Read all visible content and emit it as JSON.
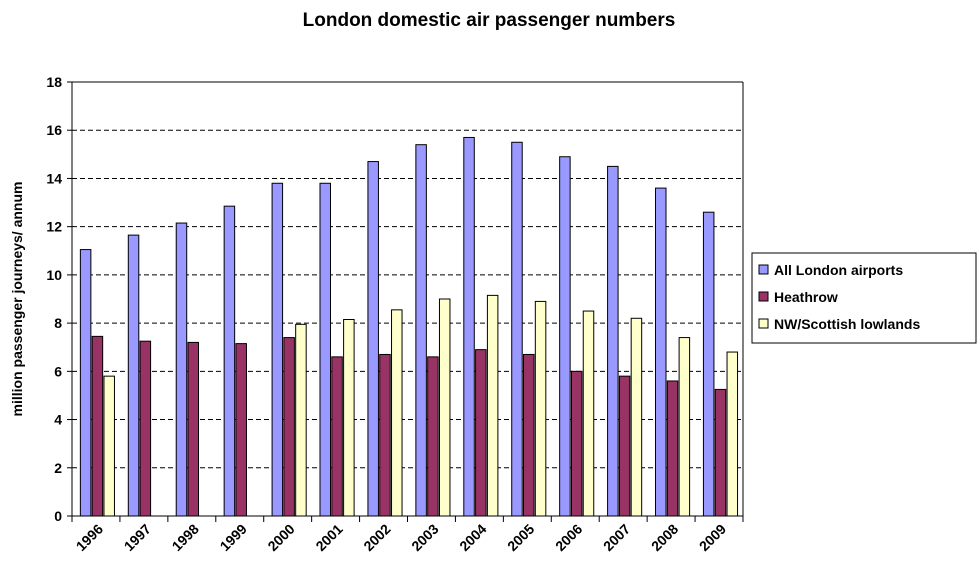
{
  "chart_data": {
    "type": "bar",
    "title": "London domestic air passenger numbers",
    "xlabel": "",
    "ylabel": "million passenger journeys/ annum",
    "ylim": [
      0,
      18
    ],
    "yticks": [
      0,
      2,
      4,
      6,
      8,
      10,
      12,
      14,
      16,
      18
    ],
    "grid": "horizontal dashed",
    "legend_position": "right",
    "categories": [
      "1996",
      "1997",
      "1998",
      "1999",
      "2000",
      "2001",
      "2002",
      "2003",
      "2004",
      "2005",
      "2006",
      "2007",
      "2008",
      "2009"
    ],
    "series": [
      {
        "name": "All London airports",
        "color": "#9999ff",
        "values": [
          11.05,
          11.65,
          12.15,
          12.85,
          13.8,
          13.8,
          14.7,
          15.4,
          15.7,
          15.5,
          14.9,
          14.5,
          13.6,
          12.6
        ]
      },
      {
        "name": "Heathrow",
        "color": "#993366",
        "values": [
          7.45,
          7.25,
          7.2,
          7.15,
          7.4,
          6.6,
          6.7,
          6.6,
          6.9,
          6.7,
          6.0,
          5.8,
          5.6,
          5.25
        ]
      },
      {
        "name": "NW/Scottish lowlands",
        "color": "#ffffcc",
        "values": [
          5.8,
          null,
          null,
          null,
          7.95,
          8.15,
          8.55,
          9.0,
          9.15,
          8.9,
          8.5,
          8.2,
          7.4,
          6.8
        ]
      }
    ]
  }
}
